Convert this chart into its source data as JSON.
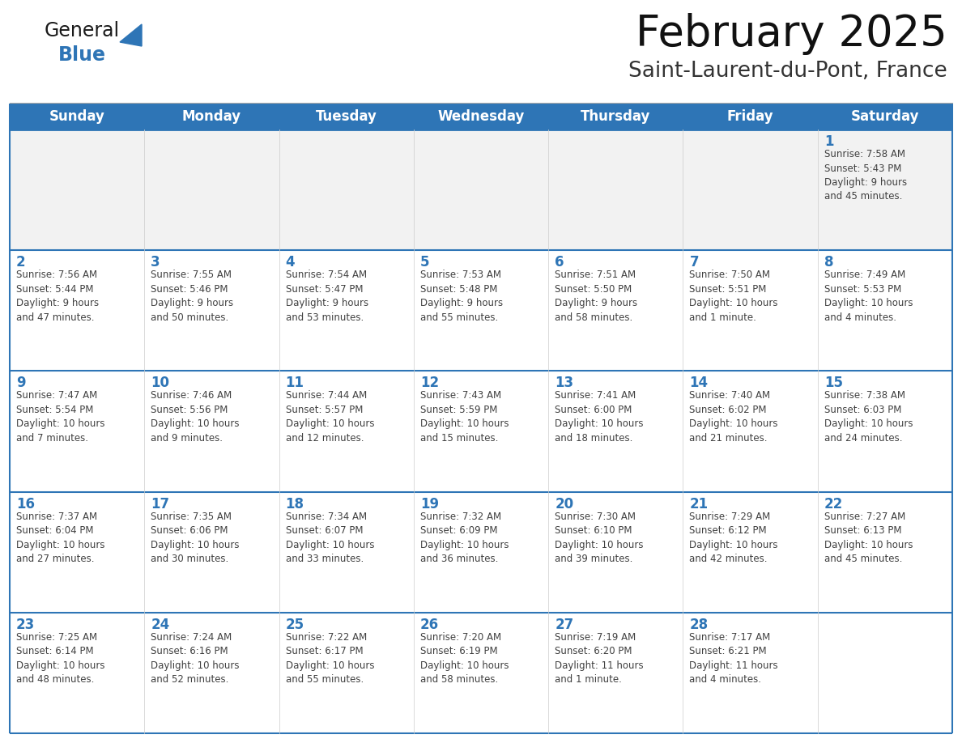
{
  "title": "February 2025",
  "subtitle": "Saint-Laurent-du-Pont, France",
  "header_bg": "#2E75B6",
  "header_text_color": "#FFFFFF",
  "cell_bg": "#FFFFFF",
  "cell_alt_bg": "#F2F2F2",
  "cell_border_color": "#2E75B6",
  "day_number_color": "#2E75B6",
  "cell_text_color": "#404040",
  "logo_general_color": "#1a1a1a",
  "logo_blue_color": "#2E75B6",
  "days_of_week": [
    "Sunday",
    "Monday",
    "Tuesday",
    "Wednesday",
    "Thursday",
    "Friday",
    "Saturday"
  ],
  "weeks": [
    [
      {
        "day": null,
        "text": ""
      },
      {
        "day": null,
        "text": ""
      },
      {
        "day": null,
        "text": ""
      },
      {
        "day": null,
        "text": ""
      },
      {
        "day": null,
        "text": ""
      },
      {
        "day": null,
        "text": ""
      },
      {
        "day": 1,
        "text": "Sunrise: 7:58 AM\nSunset: 5:43 PM\nDaylight: 9 hours\nand 45 minutes."
      }
    ],
    [
      {
        "day": 2,
        "text": "Sunrise: 7:56 AM\nSunset: 5:44 PM\nDaylight: 9 hours\nand 47 minutes."
      },
      {
        "day": 3,
        "text": "Sunrise: 7:55 AM\nSunset: 5:46 PM\nDaylight: 9 hours\nand 50 minutes."
      },
      {
        "day": 4,
        "text": "Sunrise: 7:54 AM\nSunset: 5:47 PM\nDaylight: 9 hours\nand 53 minutes."
      },
      {
        "day": 5,
        "text": "Sunrise: 7:53 AM\nSunset: 5:48 PM\nDaylight: 9 hours\nand 55 minutes."
      },
      {
        "day": 6,
        "text": "Sunrise: 7:51 AM\nSunset: 5:50 PM\nDaylight: 9 hours\nand 58 minutes."
      },
      {
        "day": 7,
        "text": "Sunrise: 7:50 AM\nSunset: 5:51 PM\nDaylight: 10 hours\nand 1 minute."
      },
      {
        "day": 8,
        "text": "Sunrise: 7:49 AM\nSunset: 5:53 PM\nDaylight: 10 hours\nand 4 minutes."
      }
    ],
    [
      {
        "day": 9,
        "text": "Sunrise: 7:47 AM\nSunset: 5:54 PM\nDaylight: 10 hours\nand 7 minutes."
      },
      {
        "day": 10,
        "text": "Sunrise: 7:46 AM\nSunset: 5:56 PM\nDaylight: 10 hours\nand 9 minutes."
      },
      {
        "day": 11,
        "text": "Sunrise: 7:44 AM\nSunset: 5:57 PM\nDaylight: 10 hours\nand 12 minutes."
      },
      {
        "day": 12,
        "text": "Sunrise: 7:43 AM\nSunset: 5:59 PM\nDaylight: 10 hours\nand 15 minutes."
      },
      {
        "day": 13,
        "text": "Sunrise: 7:41 AM\nSunset: 6:00 PM\nDaylight: 10 hours\nand 18 minutes."
      },
      {
        "day": 14,
        "text": "Sunrise: 7:40 AM\nSunset: 6:02 PM\nDaylight: 10 hours\nand 21 minutes."
      },
      {
        "day": 15,
        "text": "Sunrise: 7:38 AM\nSunset: 6:03 PM\nDaylight: 10 hours\nand 24 minutes."
      }
    ],
    [
      {
        "day": 16,
        "text": "Sunrise: 7:37 AM\nSunset: 6:04 PM\nDaylight: 10 hours\nand 27 minutes."
      },
      {
        "day": 17,
        "text": "Sunrise: 7:35 AM\nSunset: 6:06 PM\nDaylight: 10 hours\nand 30 minutes."
      },
      {
        "day": 18,
        "text": "Sunrise: 7:34 AM\nSunset: 6:07 PM\nDaylight: 10 hours\nand 33 minutes."
      },
      {
        "day": 19,
        "text": "Sunrise: 7:32 AM\nSunset: 6:09 PM\nDaylight: 10 hours\nand 36 minutes."
      },
      {
        "day": 20,
        "text": "Sunrise: 7:30 AM\nSunset: 6:10 PM\nDaylight: 10 hours\nand 39 minutes."
      },
      {
        "day": 21,
        "text": "Sunrise: 7:29 AM\nSunset: 6:12 PM\nDaylight: 10 hours\nand 42 minutes."
      },
      {
        "day": 22,
        "text": "Sunrise: 7:27 AM\nSunset: 6:13 PM\nDaylight: 10 hours\nand 45 minutes."
      }
    ],
    [
      {
        "day": 23,
        "text": "Sunrise: 7:25 AM\nSunset: 6:14 PM\nDaylight: 10 hours\nand 48 minutes."
      },
      {
        "day": 24,
        "text": "Sunrise: 7:24 AM\nSunset: 6:16 PM\nDaylight: 10 hours\nand 52 minutes."
      },
      {
        "day": 25,
        "text": "Sunrise: 7:22 AM\nSunset: 6:17 PM\nDaylight: 10 hours\nand 55 minutes."
      },
      {
        "day": 26,
        "text": "Sunrise: 7:20 AM\nSunset: 6:19 PM\nDaylight: 10 hours\nand 58 minutes."
      },
      {
        "day": 27,
        "text": "Sunrise: 7:19 AM\nSunset: 6:20 PM\nDaylight: 11 hours\nand 1 minute."
      },
      {
        "day": 28,
        "text": "Sunrise: 7:17 AM\nSunset: 6:21 PM\nDaylight: 11 hours\nand 4 minutes."
      },
      {
        "day": null,
        "text": ""
      }
    ]
  ],
  "figsize": [
    11.88,
    9.18
  ],
  "dpi": 100
}
